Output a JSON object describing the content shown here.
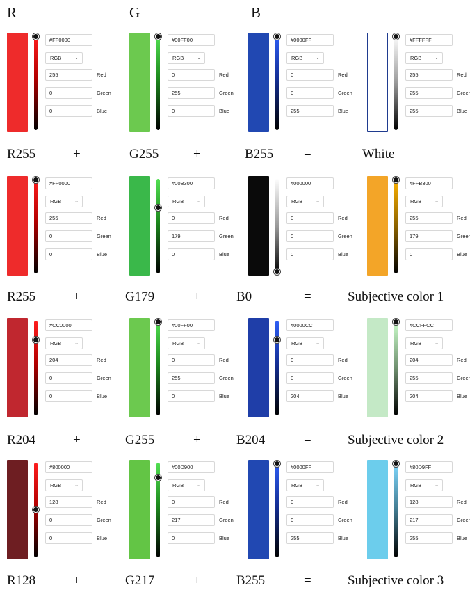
{
  "headers": {
    "r": "R",
    "g": "G",
    "b": "B"
  },
  "mode_label": "RGB",
  "channel_names": [
    "Red",
    "Green",
    "Blue"
  ],
  "rows": [
    {
      "pickers": [
        {
          "hex": "#FF0000",
          "r": "255",
          "g": "0",
          "b": "0",
          "fill": "#ee2b2b",
          "slider": "red",
          "level": 1.0,
          "outline": false
        },
        {
          "hex": "#00FF00",
          "r": "0",
          "g": "255",
          "b": "0",
          "fill": "#6cc94f",
          "slider": "green",
          "level": 1.0,
          "outline": false
        },
        {
          "hex": "#0000FF",
          "r": "0",
          "g": "0",
          "b": "255",
          "fill": "#2148b2",
          "slider": "blue",
          "level": 1.0,
          "outline": false
        },
        {
          "hex": "#FFFFFF",
          "r": "255",
          "g": "255",
          "b": "255",
          "fill": "#ffffff",
          "slider": "white",
          "level": 1.0,
          "outline": true
        }
      ],
      "labels": [
        "R255",
        "+",
        "G255",
        "+",
        "B255",
        "=",
        "White"
      ]
    },
    {
      "pickers": [
        {
          "hex": "#FF0000",
          "r": "255",
          "g": "0",
          "b": "0",
          "fill": "#ee2b2b",
          "slider": "red",
          "level": 1.0,
          "outline": false
        },
        {
          "hex": "#00B300",
          "r": "0",
          "g": "179",
          "b": "0",
          "fill": "#3ab84a",
          "slider": "green",
          "level": 0.7,
          "outline": false
        },
        {
          "hex": "#000000",
          "r": "0",
          "g": "0",
          "b": "0",
          "fill": "#0a0a0a",
          "slider": "white",
          "level": 0.0,
          "outline": false
        },
        {
          "hex": "#FFB300",
          "r": "255",
          "g": "179",
          "b": "0",
          "fill": "#f3a528",
          "slider": "orange",
          "level": 1.0,
          "outline": false
        }
      ],
      "labels": [
        "R255",
        "+",
        "G179",
        "+",
        "B0",
        "=",
        "Subjective color 1"
      ]
    },
    {
      "pickers": [
        {
          "hex": "#CC0000",
          "r": "204",
          "g": "0",
          "b": "0",
          "fill": "#c0272f",
          "slider": "red",
          "level": 0.8,
          "outline": false
        },
        {
          "hex": "#00FF00",
          "r": "0",
          "g": "255",
          "b": "0",
          "fill": "#6cc94f",
          "slider": "green",
          "level": 1.0,
          "outline": false
        },
        {
          "hex": "#0000CC",
          "r": "0",
          "g": "0",
          "b": "204",
          "fill": "#1f3ea8",
          "slider": "blue",
          "level": 0.8,
          "outline": false
        },
        {
          "hex": "#CCFFCC",
          "r": "204",
          "g": "255",
          "b": "204",
          "fill": "#c4e9c6",
          "slider": "mint",
          "level": 1.0,
          "outline": false
        }
      ],
      "labels": [
        "R204",
        "+",
        "G255",
        "+",
        "B204",
        "=",
        "Subjective color 2"
      ]
    },
    {
      "pickers": [
        {
          "hex": "#800000",
          "r": "128",
          "g": "0",
          "b": "0",
          "fill": "#6e1e22",
          "slider": "red",
          "level": 0.5,
          "outline": false
        },
        {
          "hex": "#00D900",
          "r": "0",
          "g": "217",
          "b": "0",
          "fill": "#63c545",
          "slider": "green",
          "level": 0.85,
          "outline": false
        },
        {
          "hex": "#0000FF",
          "r": "0",
          "g": "0",
          "b": "255",
          "fill": "#2148b2",
          "slider": "blue",
          "level": 1.0,
          "outline": false
        },
        {
          "hex": "#80D9FF",
          "r": "128",
          "g": "217",
          "b": "255",
          "fill": "#6ccdec",
          "slider": "sky",
          "level": 1.0,
          "outline": false
        }
      ],
      "labels": [
        "R128",
        "+",
        "G217",
        "+",
        "B255",
        "=",
        "Subjective color 3"
      ]
    }
  ]
}
